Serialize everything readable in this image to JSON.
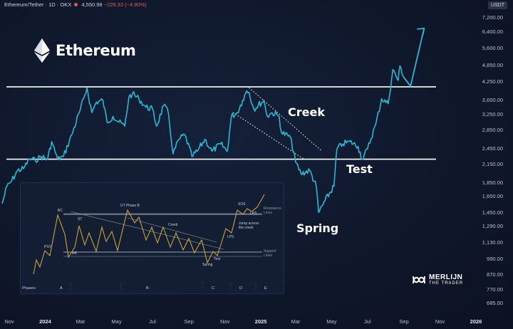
{
  "header": {
    "pair": "Ethereum/Tether · 1D · OKX",
    "price": "4,550.98",
    "change": "−229.33 (−4.80%)"
  },
  "unit_label": "USDT",
  "logo": {
    "text": "Ethereum",
    "icon": "ethereum-diamond-icon"
  },
  "annotations": {
    "creek": "Creek",
    "test": "Test",
    "spring": "Spring"
  },
  "brand": {
    "line1": "MERLIJN",
    "line2": "THE TRADER",
    "icon": "merlijn-logo-icon"
  },
  "colors": {
    "price_line": "#2ab8d4",
    "level_line": "#ffffff",
    "background": "#0f172b",
    "wyckoff_line": "#c9a13d"
  },
  "chart_data": {
    "type": "line",
    "title": "",
    "y_scale": "log",
    "y_ticks": [
      "7,200.00",
      "6,400.00",
      "5,600.00",
      "4,850.00",
      "4,250.00",
      "3,650.00",
      "3,250.00",
      "2,850.00",
      "2,450.00",
      "2,150.00",
      "1,850.00",
      "1,650.00",
      "1,450.00",
      "1,290.00",
      "1,130.00",
      "990.00",
      "870.00",
      "770.00",
      "685.00"
    ],
    "x_ticks": [
      {
        "label": "Nov",
        "date": "2023-11-01"
      },
      {
        "label": "2024",
        "date": "2024-01-01",
        "bold": true
      },
      {
        "label": "Mar",
        "date": "2024-03-01"
      },
      {
        "label": "May",
        "date": "2024-05-01"
      },
      {
        "label": "Jul",
        "date": "2024-07-01"
      },
      {
        "label": "Sep",
        "date": "2024-09-01"
      },
      {
        "label": "Nov",
        "date": "2024-11-01"
      },
      {
        "label": "2025",
        "date": "2025-01-01",
        "bold": true
      },
      {
        "label": "Mar",
        "date": "2025-03-01"
      },
      {
        "label": "May",
        "date": "2025-05-01"
      },
      {
        "label": "Jul",
        "date": "2025-07-01"
      },
      {
        "label": "Sep",
        "date": "2025-09-01"
      },
      {
        "label": "Nov",
        "date": "2025-11-01"
      },
      {
        "label": "2026",
        "date": "2026-01-01",
        "bold": true
      }
    ],
    "series": [
      {
        "values": [
          [
            "2023-10-20",
            1560
          ],
          [
            "2023-10-28",
            1800
          ],
          [
            "2023-11-05",
            1880
          ],
          [
            "2023-11-15",
            2050
          ],
          [
            "2023-11-25",
            2080
          ],
          [
            "2023-12-05",
            2250
          ],
          [
            "2023-12-15",
            2230
          ],
          [
            "2023-12-25",
            2300
          ],
          [
            "2024-01-05",
            2250
          ],
          [
            "2024-01-12",
            2600
          ],
          [
            "2024-01-22",
            2250
          ],
          [
            "2024-02-01",
            2300
          ],
          [
            "2024-02-15",
            2750
          ],
          [
            "2024-02-28",
            3300
          ],
          [
            "2024-03-08",
            3800
          ],
          [
            "2024-03-12",
            4050
          ],
          [
            "2024-03-20",
            3300
          ],
          [
            "2024-03-28",
            3600
          ],
          [
            "2024-04-08",
            3650
          ],
          [
            "2024-04-15",
            3050
          ],
          [
            "2024-04-25",
            3200
          ],
          [
            "2024-05-05",
            3050
          ],
          [
            "2024-05-15",
            2950
          ],
          [
            "2024-05-22",
            3750
          ],
          [
            "2024-05-28",
            3850
          ],
          [
            "2024-06-08",
            3700
          ],
          [
            "2024-06-20",
            3450
          ],
          [
            "2024-07-01",
            3400
          ],
          [
            "2024-07-08",
            2950
          ],
          [
            "2024-07-20",
            3500
          ],
          [
            "2024-07-28",
            3300
          ],
          [
            "2024-08-05",
            2350
          ],
          [
            "2024-08-15",
            2650
          ],
          [
            "2024-08-25",
            2750
          ],
          [
            "2024-09-06",
            2300
          ],
          [
            "2024-09-15",
            2400
          ],
          [
            "2024-09-28",
            2650
          ],
          [
            "2024-10-10",
            2400
          ],
          [
            "2024-10-25",
            2550
          ],
          [
            "2024-11-05",
            2400
          ],
          [
            "2024-11-12",
            3200
          ],
          [
            "2024-11-22",
            3300
          ],
          [
            "2024-12-01",
            3650
          ],
          [
            "2024-12-08",
            3950
          ],
          [
            "2024-12-12",
            3900
          ],
          [
            "2024-12-20",
            3400
          ],
          [
            "2025-01-06",
            3650
          ],
          [
            "2025-01-12",
            3200
          ],
          [
            "2025-01-20",
            3300
          ],
          [
            "2025-02-01",
            3200
          ],
          [
            "2025-02-05",
            2800
          ],
          [
            "2025-02-20",
            2700
          ],
          [
            "2025-03-01",
            2200
          ],
          [
            "2025-03-10",
            2000
          ],
          [
            "2025-03-25",
            2050
          ],
          [
            "2025-04-05",
            1800
          ],
          [
            "2025-04-09",
            1450
          ],
          [
            "2025-04-20",
            1600
          ],
          [
            "2025-05-05",
            1800
          ],
          [
            "2025-05-10",
            2450
          ],
          [
            "2025-05-20",
            2550
          ],
          [
            "2025-06-01",
            2600
          ],
          [
            "2025-06-15",
            2500
          ],
          [
            "2025-06-22",
            2250
          ],
          [
            "2025-07-01",
            2450
          ],
          [
            "2025-07-15",
            3000
          ],
          [
            "2025-07-25",
            3700
          ],
          [
            "2025-08-05",
            3550
          ],
          [
            "2025-08-13",
            4700
          ],
          [
            "2025-08-22",
            4300
          ],
          [
            "2025-08-25",
            4850
          ],
          [
            "2025-09-01",
            4400
          ]
        ]
      }
    ],
    "projection": [
      [
        "2025-09-01",
        4400
      ],
      [
        "2025-09-12",
        4100
      ],
      [
        "2025-10-05",
        6600
      ]
    ],
    "levels": [
      {
        "name": "resistance",
        "value": 4080
      },
      {
        "name": "support",
        "value": 2250
      }
    ],
    "channel": [
      {
        "from": [
          "2024-12-12",
          4050
        ],
        "to": [
          "2025-04-15",
          2400
        ]
      },
      {
        "from": [
          "2024-11-15",
          3300
        ],
        "to": [
          "2025-03-15",
          2250
        ]
      }
    ],
    "inset": {
      "phases_label": "Phases:",
      "phases": [
        "A",
        "B",
        "C",
        "D",
        "E"
      ],
      "labels": {
        "ps": "PSY",
        "bc": "BC",
        "ar": "AR",
        "st": "ST",
        "ut": "UT Phase B",
        "creek": "Creek",
        "spring": "Spring",
        "test": "Test",
        "lps": "LPS",
        "sos": "SOS",
        "lps2": "LPS",
        "jump": "Jump across the creek",
        "resistance": "Resistance Lines",
        "support": "Support Lines"
      }
    }
  }
}
